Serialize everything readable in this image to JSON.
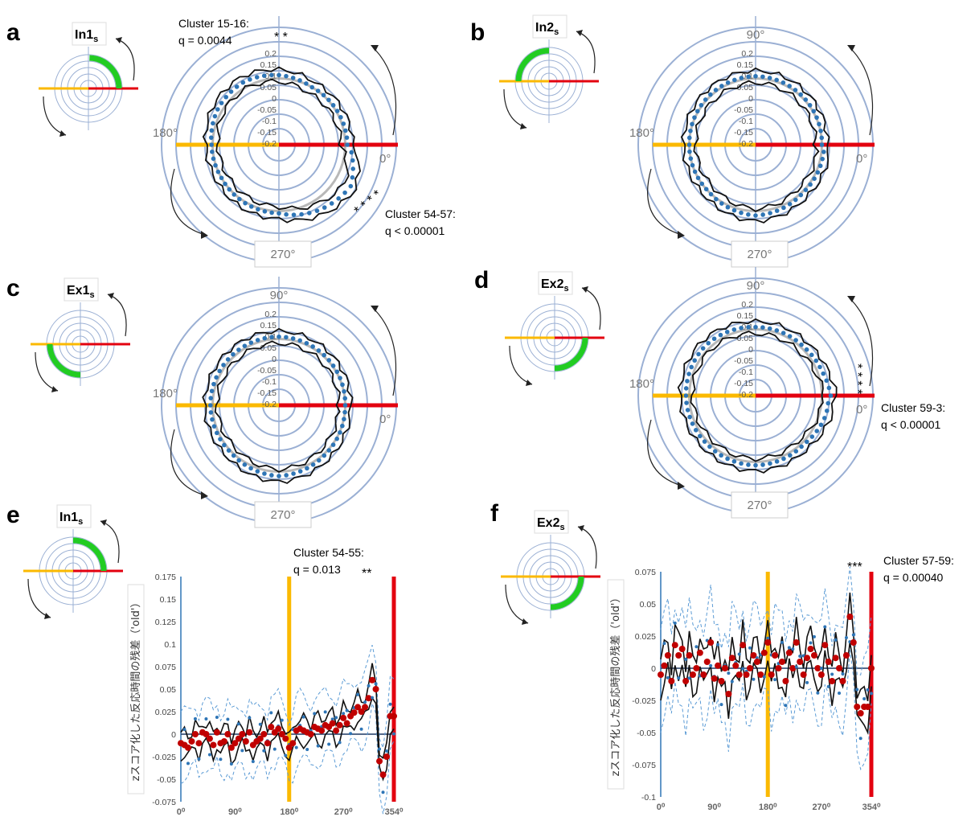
{
  "panel_labels": [
    "a",
    "b",
    "c",
    "d",
    "e",
    "f"
  ],
  "conditions": [
    "In1s",
    "In2s",
    "Ex1s",
    "Ex2s",
    "In1s",
    "Ex2s"
  ],
  "condition_base": [
    "In1",
    "In2",
    "Ex1",
    "Ex2",
    "In1",
    "Ex2"
  ],
  "condition_sub": "s",
  "angle_labels": {
    "a0": "0°",
    "a90": "90°",
    "a180": "180°",
    "a270": "270°"
  },
  "radial_ticks": [
    "0.2",
    "0.15",
    "0.1",
    "0.05",
    "0",
    "-0.05",
    "-0.1",
    "-0.15",
    "-0.2"
  ],
  "annotations": {
    "a_top": {
      "cluster": "Cluster 15-16:",
      "q": "q = 0.0044",
      "stars": "* *"
    },
    "a_bottom": {
      "cluster": "Cluster 54-57:",
      "q": "q < 0.00001",
      "stars": "* * * *"
    },
    "d": {
      "cluster": "Cluster 59-3:",
      "q": "q < 0.00001",
      "stars": "* * * *"
    },
    "e": {
      "cluster": "Cluster 54-55:",
      "q": "q = 0.013",
      "stars": "**"
    },
    "f": {
      "cluster": "Cluster 57-59:",
      "q": "q = 0.00040",
      "stars": "***"
    }
  },
  "colors": {
    "red": "#e3000f",
    "yellow": "#fbb900",
    "green": "#22cc22",
    "ring": "#9bb0d4",
    "dot_blue": "#2e75b6",
    "dot_red": "#c00000",
    "dashed": "#5b9bd5"
  },
  "line_charts": {
    "e": {
      "ylabel": "zスコア化した反応時間の残差（'old'）",
      "yticks": [
        "0.175",
        "0.15",
        "0.125",
        "0.1",
        "0.075",
        "0.05",
        "0.025",
        "0",
        "-0.025",
        "-0.05",
        "-0.075"
      ],
      "ylim": [
        -0.075,
        0.175
      ],
      "xticks": [
        "0⁰",
        "90⁰",
        "180⁰",
        "270⁰",
        "354⁰"
      ]
    },
    "f": {
      "ylabel": "zスコア化した反応時間の残差（'old'）",
      "yticks": [
        "0.075",
        "0.05",
        "0.025",
        "0",
        "-0.025",
        "-0.05",
        "-0.075",
        "-0.1"
      ],
      "ylim": [
        -0.1,
        0.075
      ],
      "xticks": [
        "0⁰",
        "90⁰",
        "180⁰",
        "270⁰",
        "354⁰"
      ]
    }
  },
  "chart_data": [
    {
      "type": "scatter",
      "panel": "a",
      "subtype": "polar",
      "condition": "In1s",
      "x_unit": "degrees",
      "rlim": [
        -0.2,
        0.2
      ],
      "mean_profile": [
        [
          0,
          0.02
        ],
        [
          30,
          0.01
        ],
        [
          60,
          0.0
        ],
        [
          90,
          0.03
        ],
        [
          120,
          0.05
        ],
        [
          150,
          0.04
        ],
        [
          180,
          0.01
        ],
        [
          210,
          0.0
        ],
        [
          240,
          0.01
        ],
        [
          270,
          0.02
        ],
        [
          300,
          0.09
        ],
        [
          330,
          0.15
        ],
        [
          354,
          0.06
        ]
      ]
    },
    {
      "type": "scatter",
      "panel": "b",
      "subtype": "polar",
      "condition": "In2s",
      "x_unit": "degrees",
      "rlim": [
        -0.2,
        0.2
      ],
      "mean_profile": [
        [
          0,
          0.0
        ],
        [
          45,
          0.01
        ],
        [
          90,
          0.02
        ],
        [
          135,
          0.01
        ],
        [
          180,
          0.0
        ],
        [
          225,
          0.0
        ],
        [
          270,
          0.04
        ],
        [
          315,
          0.01
        ],
        [
          354,
          0.02
        ]
      ]
    },
    {
      "type": "scatter",
      "panel": "c",
      "subtype": "polar",
      "condition": "Ex1s",
      "x_unit": "degrees",
      "rlim": [
        -0.2,
        0.2
      ],
      "mean_profile": [
        [
          0,
          0.0
        ],
        [
          45,
          0.01
        ],
        [
          90,
          0.02
        ],
        [
          135,
          0.02
        ],
        [
          180,
          0.02
        ],
        [
          225,
          0.01
        ],
        [
          270,
          0.04
        ],
        [
          315,
          0.01
        ],
        [
          354,
          0.0
        ]
      ]
    },
    {
      "type": "scatter",
      "panel": "d",
      "subtype": "polar",
      "condition": "Ex2s",
      "x_unit": "degrees",
      "rlim": [
        -0.2,
        0.2
      ],
      "mean_profile": [
        [
          0,
          0.08
        ],
        [
          20,
          0.04
        ],
        [
          45,
          0.02
        ],
        [
          90,
          0.02
        ],
        [
          135,
          0.04
        ],
        [
          180,
          0.03
        ],
        [
          225,
          0.02
        ],
        [
          270,
          0.03
        ],
        [
          315,
          0.02
        ],
        [
          345,
          0.06
        ]
      ]
    },
    {
      "type": "line",
      "panel": "e",
      "condition": "In1s",
      "xlim": [
        0,
        354
      ],
      "ylim": [
        -0.075,
        0.175
      ],
      "series": [
        {
          "values_x": [
            0,
            6,
            12,
            18,
            24,
            30,
            36,
            42,
            48,
            54,
            60,
            66,
            72,
            78,
            84,
            90,
            96,
            102,
            108,
            114,
            120,
            126,
            132,
            138,
            144,
            150,
            156,
            162,
            168,
            174,
            180,
            186,
            192,
            198,
            204,
            210,
            216,
            222,
            228,
            234,
            240,
            246,
            252,
            258,
            264,
            270,
            276,
            282,
            288,
            294,
            300,
            306,
            312,
            318,
            324,
            330,
            336,
            342,
            348,
            354
          ],
          "values": [
            -0.01,
            -0.012,
            -0.015,
            -0.008,
            0.0,
            -0.01,
            0.002,
            0.0,
            -0.005,
            -0.012,
            0.002,
            -0.01,
            -0.008,
            0.0,
            -0.015,
            -0.01,
            -0.005,
            0.0,
            -0.008,
            0.002,
            -0.012,
            -0.008,
            -0.005,
            0.0,
            -0.01,
            0.008,
            0.002,
            0.006,
            0.0,
            -0.005,
            -0.015,
            -0.01,
            0.004,
            0.006,
            0.004,
            0.002,
            0.0,
            0.008,
            0.006,
            0.004,
            0.01,
            0.008,
            0.012,
            0.004,
            0.01,
            0.018,
            0.012,
            0.02,
            0.024,
            0.03,
            0.025,
            0.03,
            0.04,
            0.06,
            0.05,
            -0.03,
            -0.045,
            -0.025,
            0.02,
            0.02
          ]
        }
      ]
    },
    {
      "type": "line",
      "panel": "f",
      "condition": "Ex2s",
      "xlim": [
        0,
        354
      ],
      "ylim": [
        -0.1,
        0.075
      ],
      "series": [
        {
          "values_x": [
            0,
            6,
            12,
            18,
            24,
            30,
            36,
            42,
            48,
            54,
            60,
            66,
            72,
            78,
            84,
            90,
            96,
            102,
            108,
            114,
            120,
            126,
            132,
            138,
            144,
            150,
            156,
            162,
            168,
            174,
            180,
            186,
            192,
            198,
            204,
            210,
            216,
            222,
            228,
            234,
            240,
            246,
            252,
            258,
            264,
            270,
            276,
            282,
            288,
            294,
            300,
            306,
            312,
            318,
            324,
            330,
            336,
            342,
            348,
            354
          ],
          "values": [
            -0.005,
            0.002,
            0.01,
            -0.01,
            0.018,
            0.01,
            0.015,
            -0.01,
            0.01,
            -0.005,
            0.0,
            0.012,
            -0.005,
            0.005,
            0.02,
            -0.008,
            0.002,
            -0.01,
            0.0,
            -0.02,
            0.008,
            0.002,
            -0.005,
            0.018,
            -0.005,
            0.0,
            0.01,
            0.005,
            -0.005,
            0.012,
            0.02,
            -0.005,
            0.01,
            0.0,
            0.005,
            -0.01,
            0.012,
            0.0,
            0.02,
            0.005,
            -0.005,
            0.008,
            0.015,
            0.01,
            0.0,
            -0.005,
            0.018,
            0.005,
            -0.01,
            0.008,
            0.0,
            -0.01,
            0.01,
            0.04,
            0.02,
            -0.03,
            -0.035,
            -0.03,
            -0.03,
            0.0
          ]
        }
      ]
    }
  ]
}
